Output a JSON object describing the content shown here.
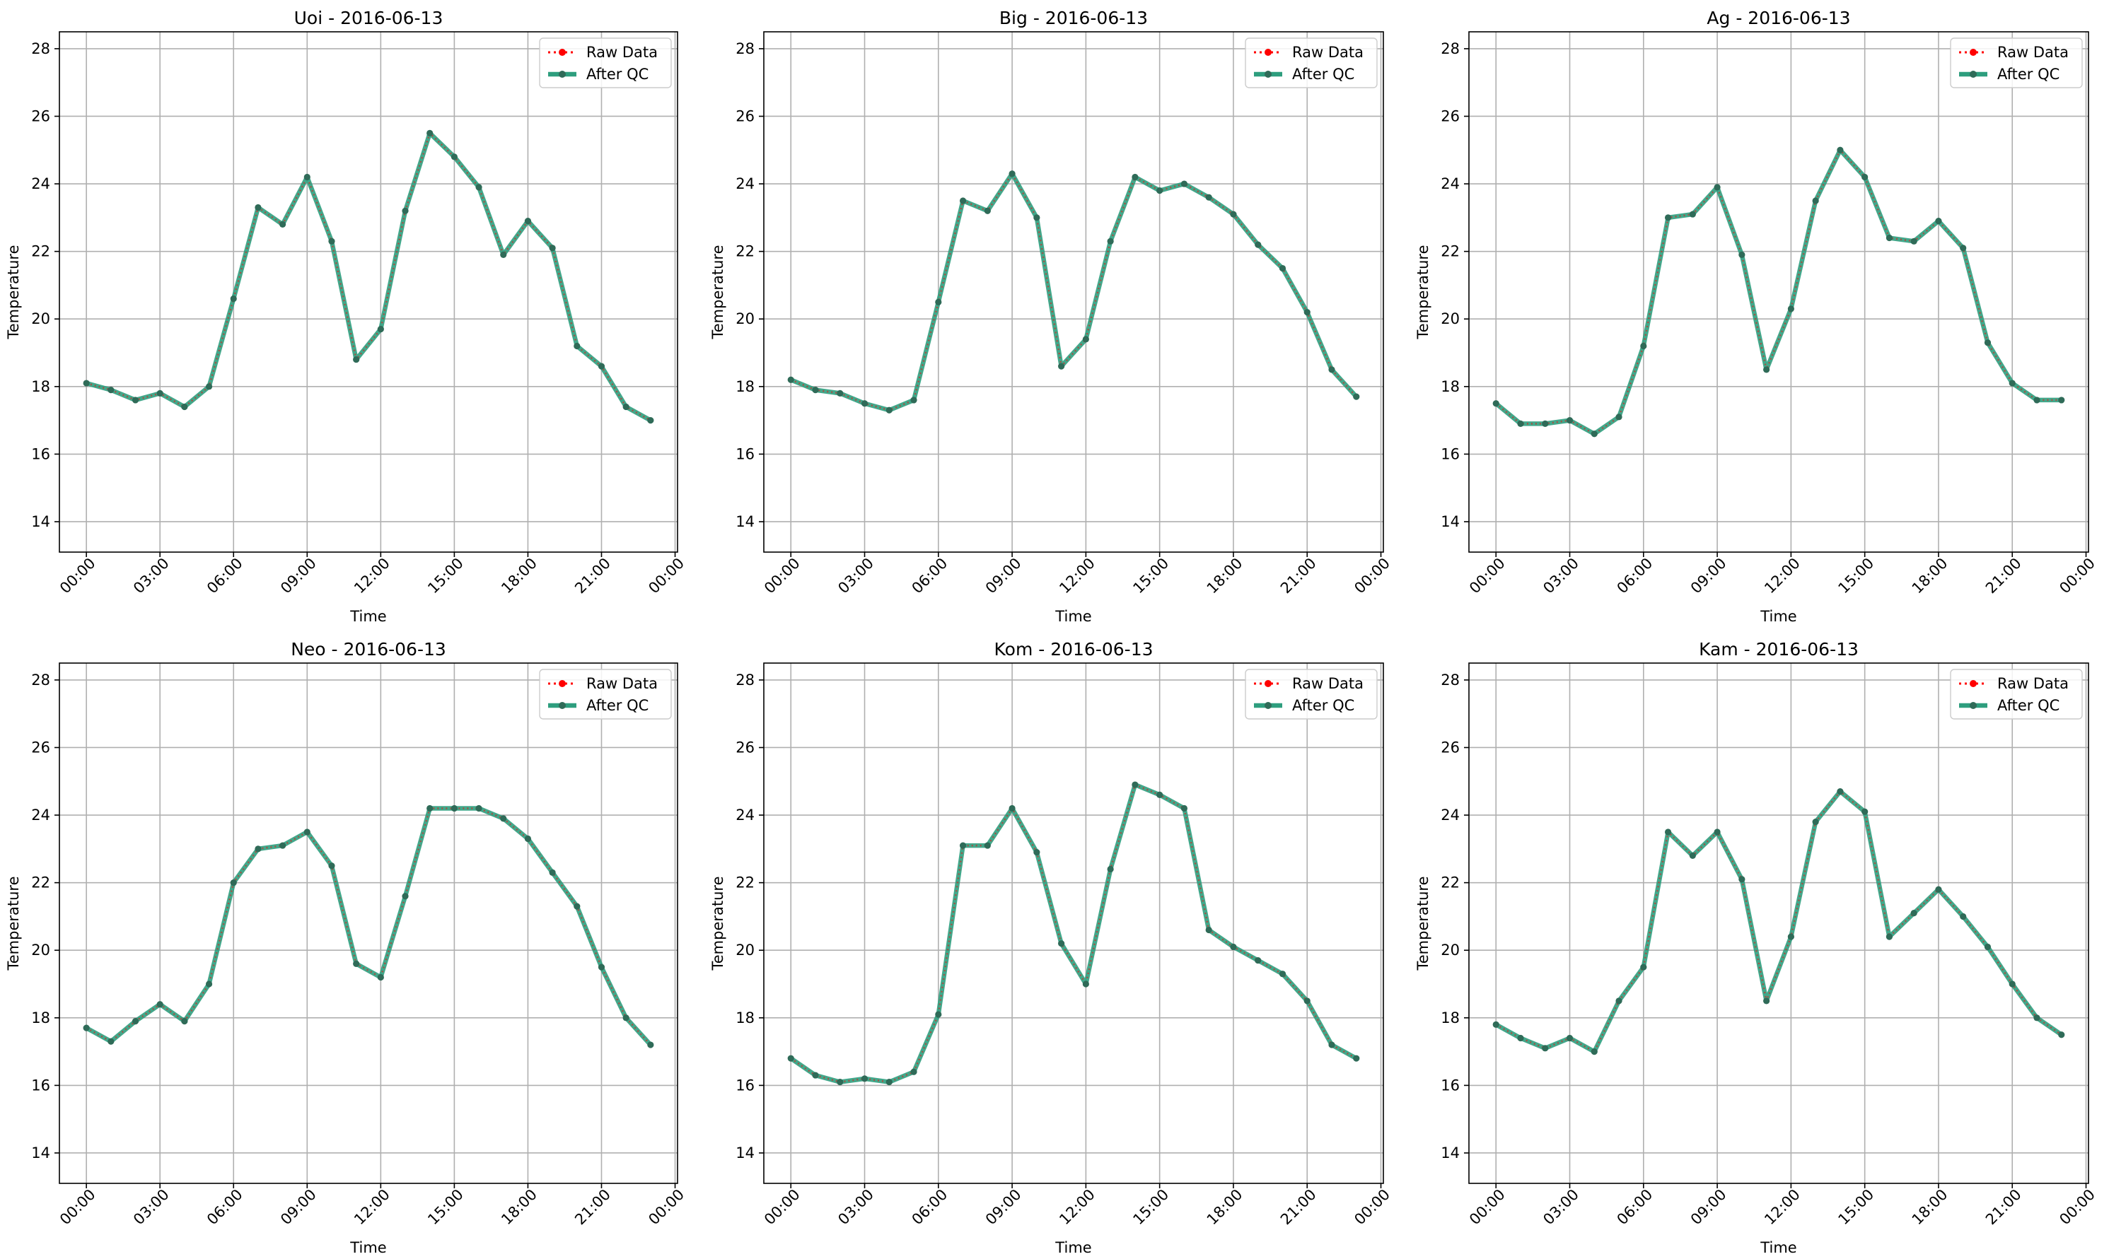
{
  "chart_data": [
    {
      "type": "line",
      "title": "Uoi - 2016-06-13",
      "xlabel": "Time",
      "ylabel": "Temperature",
      "ylim": [
        13.1,
        28.5
      ],
      "xlim": [
        -1.1,
        24.1
      ],
      "yticks": [
        14,
        16,
        18,
        20,
        22,
        24,
        26,
        28
      ],
      "xticks": [
        "00:00",
        "03:00",
        "06:00",
        "09:00",
        "12:00",
        "15:00",
        "18:00",
        "21:00",
        "00:00"
      ],
      "xtick_hours": [
        0,
        3,
        6,
        9,
        12,
        15,
        18,
        21,
        24
      ],
      "grid": true,
      "legend_position": "top-right",
      "legend": [
        "Raw Data",
        "After QC"
      ],
      "x": [
        0,
        1,
        2,
        3,
        4,
        5,
        6,
        7,
        8,
        9,
        10,
        11,
        12,
        13,
        14,
        15,
        16,
        17,
        18,
        19,
        20,
        21,
        22,
        23
      ],
      "series": [
        {
          "name": "Raw Data",
          "values": [
            18.1,
            17.9,
            17.6,
            17.8,
            17.4,
            18.0,
            20.6,
            23.3,
            22.8,
            24.2,
            22.3,
            18.8,
            19.7,
            23.2,
            25.5,
            24.8,
            23.9,
            21.9,
            22.9,
            22.1,
            19.2,
            18.6,
            17.4,
            17.0
          ]
        },
        {
          "name": "After QC",
          "values": [
            18.1,
            17.9,
            17.6,
            17.8,
            17.4,
            18.0,
            20.6,
            23.3,
            22.8,
            24.2,
            22.3,
            18.8,
            19.7,
            23.2,
            25.5,
            24.8,
            23.9,
            21.9,
            22.9,
            22.1,
            19.2,
            18.6,
            17.4,
            17.0
          ]
        }
      ]
    },
    {
      "type": "line",
      "title": "Big - 2016-06-13",
      "xlabel": "Time",
      "ylabel": "Temperature",
      "ylim": [
        13.1,
        28.5
      ],
      "xlim": [
        -1.1,
        24.1
      ],
      "yticks": [
        14,
        16,
        18,
        20,
        22,
        24,
        26,
        28
      ],
      "xticks": [
        "00:00",
        "03:00",
        "06:00",
        "09:00",
        "12:00",
        "15:00",
        "18:00",
        "21:00",
        "00:00"
      ],
      "xtick_hours": [
        0,
        3,
        6,
        9,
        12,
        15,
        18,
        21,
        24
      ],
      "grid": true,
      "legend_position": "top-right",
      "legend": [
        "Raw Data",
        "After QC"
      ],
      "x": [
        0,
        1,
        2,
        3,
        4,
        5,
        6,
        7,
        8,
        9,
        10,
        11,
        12,
        13,
        14,
        15,
        16,
        17,
        18,
        19,
        20,
        21,
        22,
        23
      ],
      "series": [
        {
          "name": "Raw Data",
          "values": [
            18.2,
            17.9,
            17.8,
            17.5,
            17.3,
            17.6,
            20.5,
            23.5,
            23.2,
            24.3,
            23.0,
            18.6,
            19.4,
            22.3,
            24.2,
            23.8,
            24.0,
            23.6,
            23.1,
            22.2,
            21.5,
            20.2,
            18.5,
            17.7
          ]
        },
        {
          "name": "After QC",
          "values": [
            18.2,
            17.9,
            17.8,
            17.5,
            17.3,
            17.6,
            20.5,
            23.5,
            23.2,
            24.3,
            23.0,
            18.6,
            19.4,
            22.3,
            24.2,
            23.8,
            24.0,
            23.6,
            23.1,
            22.2,
            21.5,
            20.2,
            18.5,
            17.7
          ]
        }
      ]
    },
    {
      "type": "line",
      "title": "Ag - 2016-06-13",
      "xlabel": "Time",
      "ylabel": "Temperature",
      "ylim": [
        13.1,
        28.5
      ],
      "xlim": [
        -1.1,
        24.1
      ],
      "yticks": [
        14,
        16,
        18,
        20,
        22,
        24,
        26,
        28
      ],
      "xticks": [
        "00:00",
        "03:00",
        "06:00",
        "09:00",
        "12:00",
        "15:00",
        "18:00",
        "21:00",
        "00:00"
      ],
      "xtick_hours": [
        0,
        3,
        6,
        9,
        12,
        15,
        18,
        21,
        24
      ],
      "grid": true,
      "legend_position": "top-right",
      "legend": [
        "Raw Data",
        "After QC"
      ],
      "x": [
        0,
        1,
        2,
        3,
        4,
        5,
        6,
        7,
        8,
        9,
        10,
        11,
        12,
        13,
        14,
        15,
        16,
        17,
        18,
        19,
        20,
        21,
        22,
        23
      ],
      "series": [
        {
          "name": "Raw Data",
          "values": [
            17.5,
            16.9,
            16.9,
            17.0,
            16.6,
            17.1,
            19.2,
            23.0,
            23.1,
            23.9,
            21.9,
            18.5,
            20.3,
            23.5,
            25.0,
            24.2,
            22.4,
            22.3,
            22.9,
            22.1,
            19.3,
            18.1,
            17.6,
            17.6
          ]
        },
        {
          "name": "After QC",
          "values": [
            17.5,
            16.9,
            16.9,
            17.0,
            16.6,
            17.1,
            19.2,
            23.0,
            23.1,
            23.9,
            21.9,
            18.5,
            20.3,
            23.5,
            25.0,
            24.2,
            22.4,
            22.3,
            22.9,
            22.1,
            19.3,
            18.1,
            17.6,
            17.6
          ]
        }
      ]
    },
    {
      "type": "line",
      "title": "Neo - 2016-06-13",
      "xlabel": "Time",
      "ylabel": "Temperature",
      "ylim": [
        13.1,
        28.5
      ],
      "xlim": [
        -1.1,
        24.1
      ],
      "yticks": [
        14,
        16,
        18,
        20,
        22,
        24,
        26,
        28
      ],
      "xticks": [
        "00:00",
        "03:00",
        "06:00",
        "09:00",
        "12:00",
        "15:00",
        "18:00",
        "21:00",
        "00:00"
      ],
      "xtick_hours": [
        0,
        3,
        6,
        9,
        12,
        15,
        18,
        21,
        24
      ],
      "grid": true,
      "legend_position": "top-right",
      "legend": [
        "Raw Data",
        "After QC"
      ],
      "x": [
        0,
        1,
        2,
        3,
        4,
        5,
        6,
        7,
        8,
        9,
        10,
        11,
        12,
        13,
        14,
        15,
        16,
        17,
        18,
        19,
        20,
        21,
        22,
        23
      ],
      "series": [
        {
          "name": "Raw Data",
          "values": [
            17.7,
            17.3,
            17.9,
            18.4,
            17.9,
            19.0,
            22.0,
            23.0,
            23.1,
            23.5,
            22.5,
            19.6,
            19.2,
            21.6,
            24.2,
            24.2,
            24.2,
            23.9,
            23.3,
            22.3,
            21.3,
            19.5,
            18.0,
            17.2
          ]
        },
        {
          "name": "After QC",
          "values": [
            17.7,
            17.3,
            17.9,
            18.4,
            17.9,
            19.0,
            22.0,
            23.0,
            23.1,
            23.5,
            22.5,
            19.6,
            19.2,
            21.6,
            24.2,
            24.2,
            24.2,
            23.9,
            23.3,
            22.3,
            21.3,
            19.5,
            18.0,
            17.2
          ]
        }
      ]
    },
    {
      "type": "line",
      "title": "Kom - 2016-06-13",
      "xlabel": "Time",
      "ylabel": "Temperature",
      "ylim": [
        13.1,
        28.5
      ],
      "xlim": [
        -1.1,
        24.1
      ],
      "yticks": [
        14,
        16,
        18,
        20,
        22,
        24,
        26,
        28
      ],
      "xticks": [
        "00:00",
        "03:00",
        "06:00",
        "09:00",
        "12:00",
        "15:00",
        "18:00",
        "21:00",
        "00:00"
      ],
      "xtick_hours": [
        0,
        3,
        6,
        9,
        12,
        15,
        18,
        21,
        24
      ],
      "grid": true,
      "legend_position": "top-right",
      "legend": [
        "Raw Data",
        "After QC"
      ],
      "x": [
        0,
        1,
        2,
        3,
        4,
        5,
        6,
        7,
        8,
        9,
        10,
        11,
        12,
        13,
        14,
        15,
        16,
        17,
        18,
        19,
        20,
        21,
        22,
        23
      ],
      "series": [
        {
          "name": "Raw Data",
          "values": [
            16.8,
            16.3,
            16.1,
            16.2,
            16.1,
            16.4,
            18.1,
            23.1,
            23.1,
            24.2,
            22.9,
            20.2,
            19.0,
            22.4,
            24.9,
            24.6,
            24.2,
            20.6,
            20.1,
            19.7,
            19.3,
            18.5,
            17.2,
            16.8
          ]
        },
        {
          "name": "After QC",
          "values": [
            16.8,
            16.3,
            16.1,
            16.2,
            16.1,
            16.4,
            18.1,
            23.1,
            23.1,
            24.2,
            22.9,
            20.2,
            19.0,
            22.4,
            24.9,
            24.6,
            24.2,
            20.6,
            20.1,
            19.7,
            19.3,
            18.5,
            17.2,
            16.8
          ]
        }
      ]
    },
    {
      "type": "line",
      "title": "Kam - 2016-06-13",
      "xlabel": "Time",
      "ylabel": "Temperature",
      "ylim": [
        13.1,
        28.5
      ],
      "xlim": [
        -1.1,
        24.1
      ],
      "yticks": [
        14,
        16,
        18,
        20,
        22,
        24,
        26,
        28
      ],
      "xticks": [
        "00:00",
        "03:00",
        "06:00",
        "09:00",
        "12:00",
        "15:00",
        "18:00",
        "21:00",
        "00:00"
      ],
      "xtick_hours": [
        0,
        3,
        6,
        9,
        12,
        15,
        18,
        21,
        24
      ],
      "grid": true,
      "legend_position": "top-right",
      "legend": [
        "Raw Data",
        "After QC"
      ],
      "x": [
        0,
        1,
        2,
        3,
        4,
        5,
        6,
        7,
        8,
        9,
        10,
        11,
        12,
        13,
        14,
        15,
        16,
        17,
        18,
        19,
        20,
        21,
        22,
        23
      ],
      "series": [
        {
          "name": "Raw Data",
          "values": [
            17.8,
            17.4,
            17.1,
            17.4,
            17.0,
            18.5,
            19.5,
            23.5,
            22.8,
            23.5,
            22.1,
            18.5,
            20.4,
            23.8,
            24.7,
            24.1,
            20.4,
            21.1,
            21.8,
            21.0,
            20.1,
            19.0,
            18.0,
            17.5
          ]
        },
        {
          "name": "After QC",
          "values": [
            17.8,
            17.4,
            17.1,
            17.4,
            17.0,
            18.5,
            19.5,
            23.5,
            22.8,
            23.5,
            22.1,
            18.5,
            20.4,
            23.8,
            24.7,
            24.1,
            20.4,
            21.1,
            21.8,
            21.0,
            20.1,
            19.0,
            18.0,
            17.5
          ]
        }
      ]
    }
  ],
  "style": {
    "raw_color": "#ff0000",
    "qc_color": "#2e9e7e",
    "marker_color": "#2f6b58",
    "grid_color": "#b0b0b0",
    "axes_color": "#000000"
  }
}
